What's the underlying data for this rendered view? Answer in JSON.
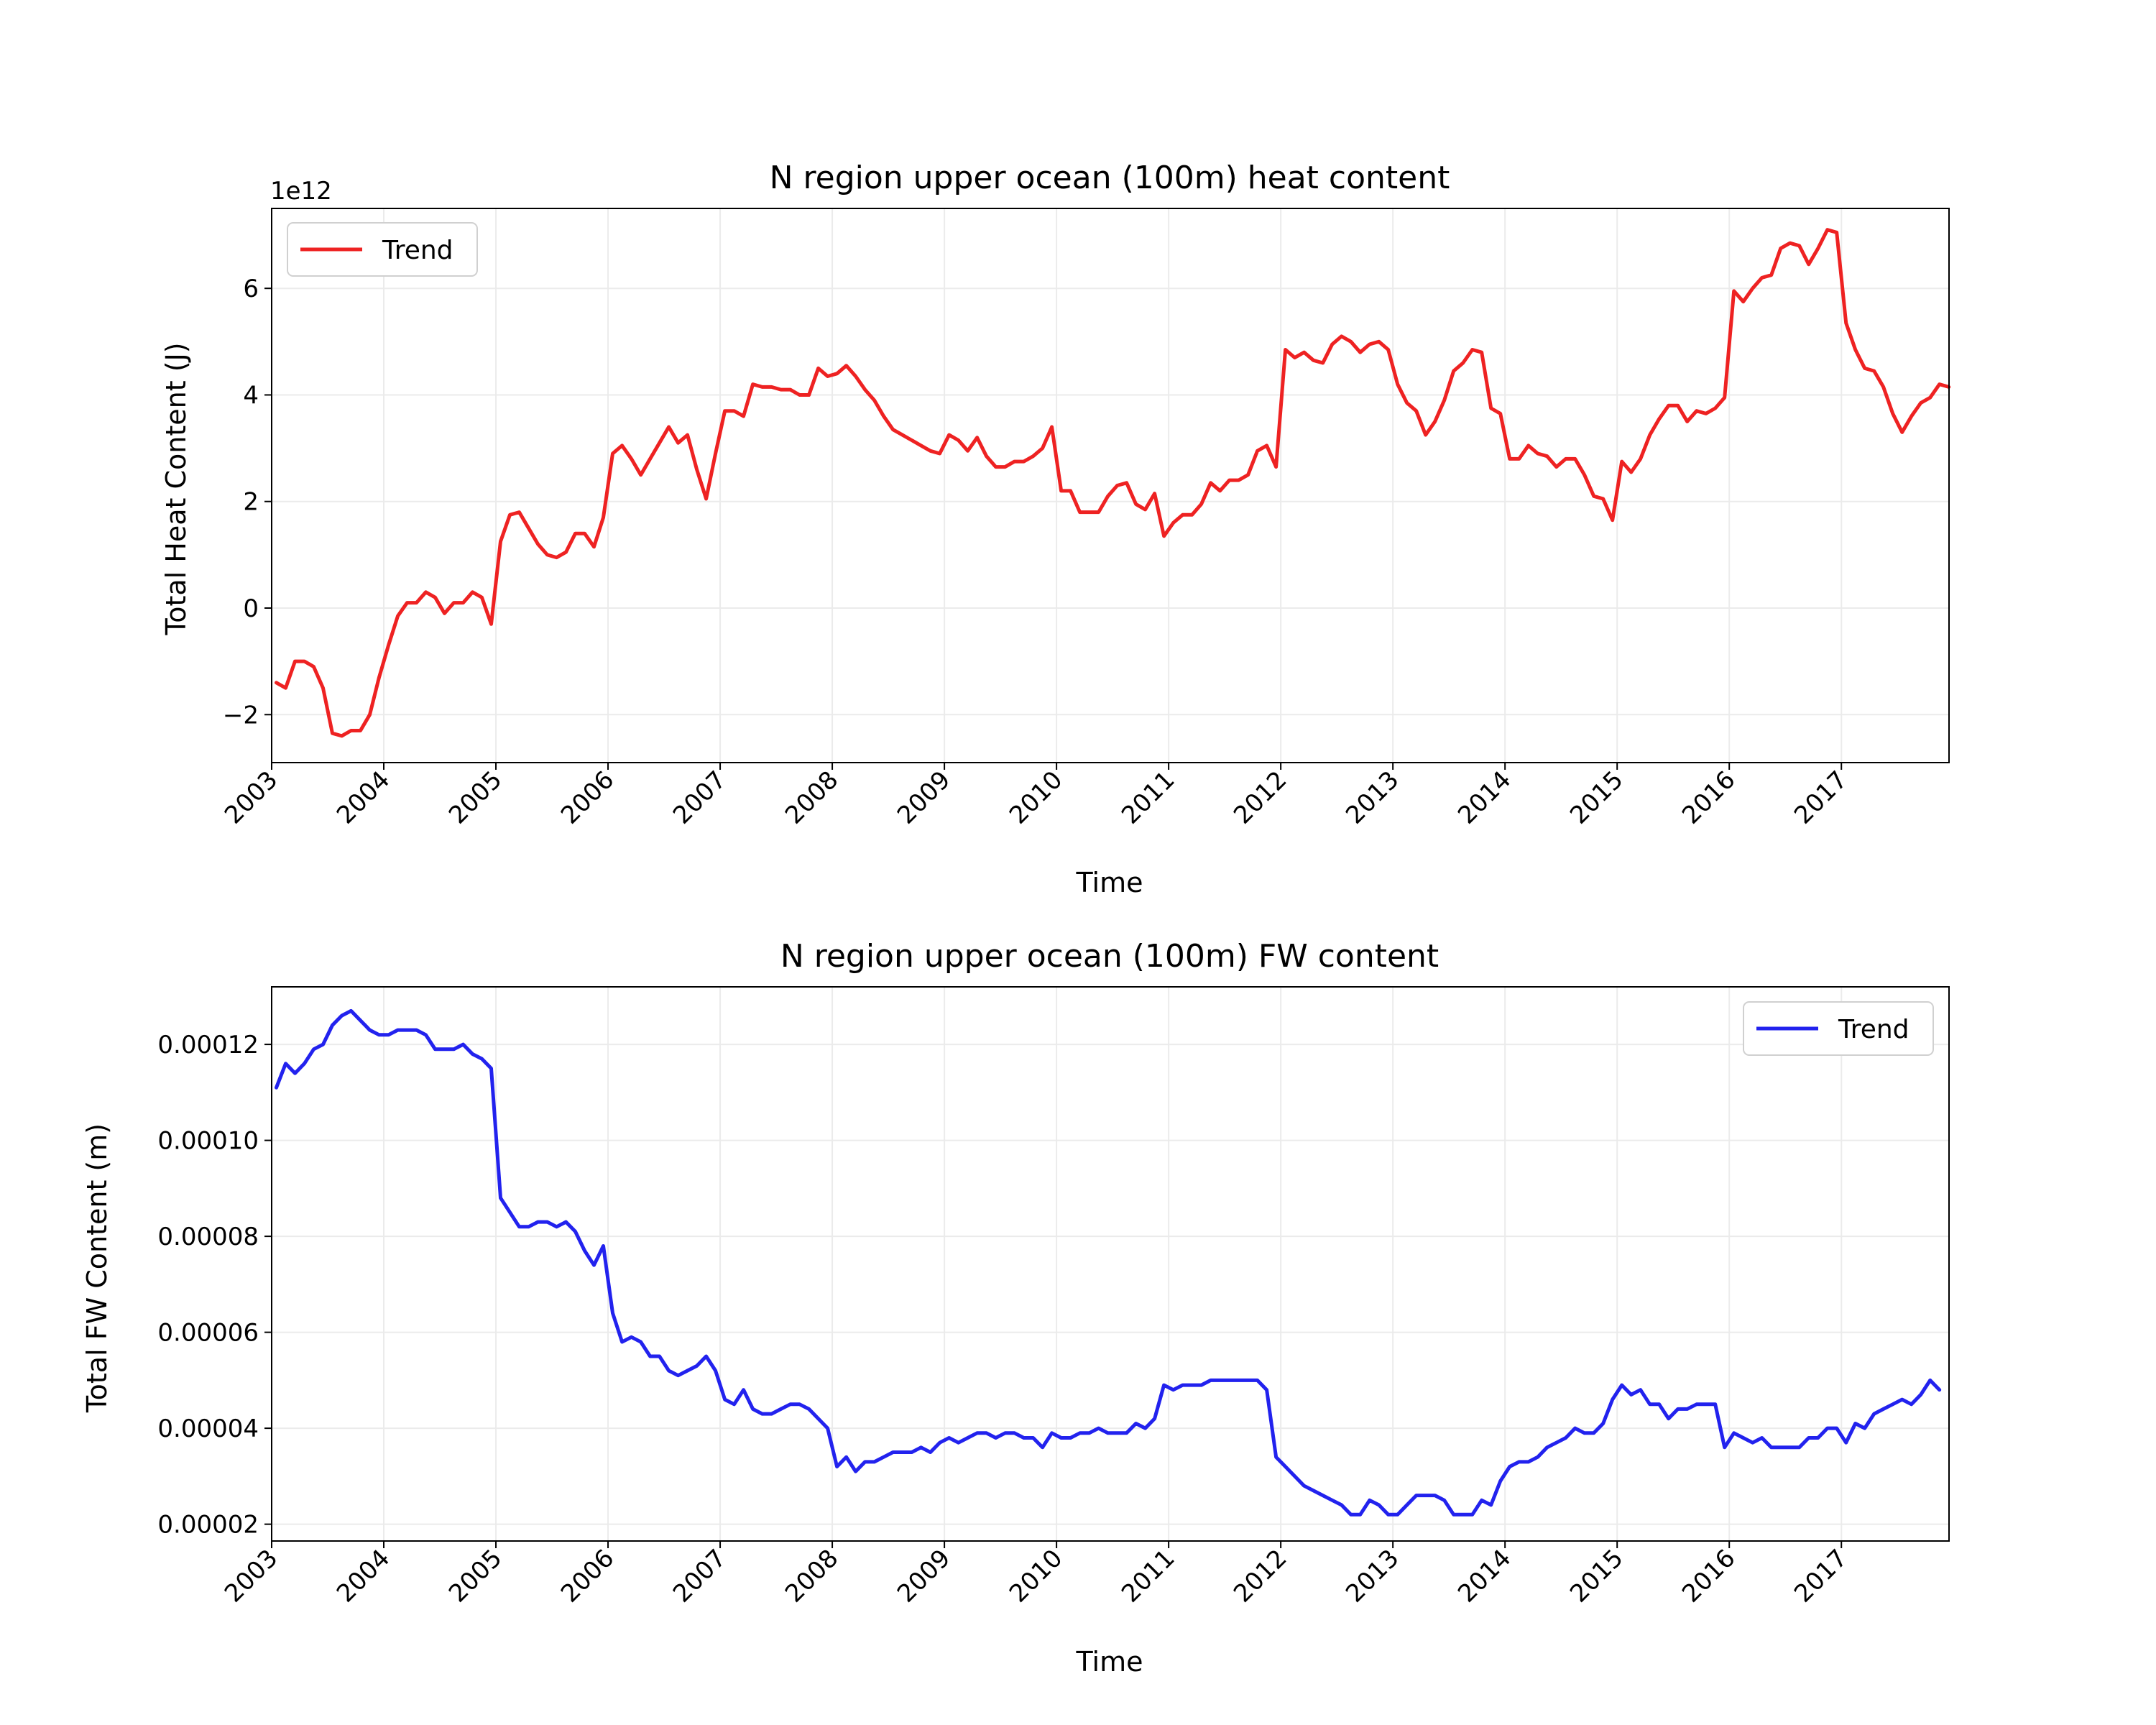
{
  "chart_data": [
    {
      "type": "line",
      "title": "N region upper ocean (100m) heat content",
      "xlabel": "Time",
      "ylabel": "Total Heat Content (J)",
      "y_offset_label": "1e12",
      "y_multiplier": 1000000000000.0,
      "xlim": [
        2003.0,
        2017.96
      ],
      "ylim": [
        -2.9,
        7.5
      ],
      "x_ticks": [
        "2003",
        "2004",
        "2005",
        "2006",
        "2007",
        "2008",
        "2009",
        "2010",
        "2011",
        "2012",
        "2013",
        "2014",
        "2015",
        "2016",
        "2017"
      ],
      "y_ticks": [
        -2,
        0,
        2,
        4,
        6
      ],
      "y_tick_labels": [
        "−2",
        "0",
        "2",
        "4",
        "6"
      ],
      "grid": true,
      "legend_position": "upper left",
      "series": [
        {
          "name": "Trend",
          "color": "#ee2222",
          "start_year": 2003,
          "step": "monthly",
          "values": [
            -1.4,
            -1.5,
            -1.0,
            -1.0,
            -1.1,
            -1.5,
            -2.35,
            -2.4,
            -2.3,
            -2.3,
            -2.0,
            -1.3,
            -0.7,
            -0.15,
            0.1,
            0.1,
            0.3,
            0.2,
            -0.1,
            0.1,
            0.1,
            0.3,
            0.2,
            -0.3,
            1.25,
            1.75,
            1.8,
            1.5,
            1.2,
            1.0,
            0.95,
            1.05,
            1.4,
            1.4,
            1.15,
            1.7,
            2.9,
            3.05,
            2.8,
            2.5,
            2.8,
            3.1,
            3.4,
            3.1,
            3.25,
            2.6,
            2.05,
            2.9,
            3.7,
            3.7,
            3.6,
            4.2,
            4.15,
            4.15,
            4.1,
            4.1,
            4.0,
            4.0,
            4.5,
            4.35,
            4.4,
            4.55,
            4.35,
            4.1,
            3.9,
            3.6,
            3.35,
            3.25,
            3.15,
            3.05,
            2.95,
            2.9,
            3.25,
            3.15,
            2.95,
            3.2,
            2.85,
            2.65,
            2.65,
            2.75,
            2.75,
            2.85,
            3.0,
            3.4,
            2.2,
            2.2,
            1.8,
            1.8,
            1.8,
            2.1,
            2.3,
            2.35,
            1.95,
            1.85,
            2.15,
            1.35,
            1.6,
            1.75,
            1.75,
            1.95,
            2.35,
            2.2,
            2.4,
            2.4,
            2.5,
            2.95,
            3.05,
            2.65,
            4.85,
            4.7,
            4.8,
            4.65,
            4.6,
            4.95,
            5.1,
            5.0,
            4.8,
            4.95,
            5.0,
            4.85,
            4.2,
            3.85,
            3.7,
            3.25,
            3.5,
            3.9,
            4.45,
            4.6,
            4.85,
            4.8,
            3.75,
            3.65,
            2.8,
            2.8,
            3.05,
            2.9,
            2.85,
            2.65,
            2.8,
            2.8,
            2.5,
            2.1,
            2.05,
            1.65,
            2.75,
            2.55,
            2.8,
            3.25,
            3.55,
            3.8,
            3.8,
            3.5,
            3.7,
            3.65,
            3.75,
            3.95,
            5.95,
            5.75,
            6.0,
            6.2,
            6.25,
            6.75,
            6.85,
            6.8,
            6.45,
            6.75,
            7.1,
            7.05,
            5.35,
            4.85,
            4.5,
            4.45,
            4.15,
            3.65,
            3.3,
            3.6,
            3.85,
            3.95,
            4.2,
            4.15
          ]
        }
      ]
    },
    {
      "type": "line",
      "title": "N region upper ocean (100m) FW content",
      "xlabel": "Time",
      "ylabel": "Total FW Content (m)",
      "xlim": [
        2003.0,
        2017.96
      ],
      "ylim": [
        1.65e-05,
        0.000132
      ],
      "x_ticks": [
        "2003",
        "2004",
        "2005",
        "2006",
        "2007",
        "2008",
        "2009",
        "2010",
        "2011",
        "2012",
        "2013",
        "2014",
        "2015",
        "2016",
        "2017"
      ],
      "y_ticks": [
        2e-05,
        4e-05,
        6e-05,
        8e-05,
        0.0001,
        0.00012
      ],
      "y_tick_labels": [
        "0.00002",
        "0.00004",
        "0.00006",
        "0.00008",
        "0.00010",
        "0.00012"
      ],
      "grid": true,
      "legend_position": "upper right",
      "series": [
        {
          "name": "Trend",
          "color": "#2222ee",
          "start_year": 2003,
          "step": "monthly",
          "values": [
            0.000111,
            0.000116,
            0.000114,
            0.000116,
            0.000119,
            0.00012,
            0.000124,
            0.000126,
            0.000127,
            0.000125,
            0.000123,
            0.000122,
            0.000122,
            0.000123,
            0.000123,
            0.000123,
            0.000122,
            0.000119,
            0.000119,
            0.000119,
            0.00012,
            0.000118,
            0.000117,
            0.000115,
            8.8e-05,
            8.5e-05,
            8.2e-05,
            8.2e-05,
            8.3e-05,
            8.3e-05,
            8.2e-05,
            8.3e-05,
            8.1e-05,
            7.7e-05,
            7.4e-05,
            7.8e-05,
            6.4e-05,
            5.8e-05,
            5.9e-05,
            5.8e-05,
            5.5e-05,
            5.5e-05,
            5.2e-05,
            5.1e-05,
            5.2e-05,
            5.3e-05,
            5.5e-05,
            5.2e-05,
            4.6e-05,
            4.5e-05,
            4.8e-05,
            4.4e-05,
            4.3e-05,
            4.3e-05,
            4.4e-05,
            4.5e-05,
            4.5e-05,
            4.4e-05,
            4.2e-05,
            4e-05,
            3.2e-05,
            3.4e-05,
            3.1e-05,
            3.3e-05,
            3.3e-05,
            3.4e-05,
            3.5e-05,
            3.5e-05,
            3.5e-05,
            3.6e-05,
            3.5e-05,
            3.7e-05,
            3.8e-05,
            3.7e-05,
            3.8e-05,
            3.9e-05,
            3.9e-05,
            3.8e-05,
            3.9e-05,
            3.9e-05,
            3.8e-05,
            3.8e-05,
            3.6e-05,
            3.9e-05,
            3.8e-05,
            3.8e-05,
            3.9e-05,
            3.9e-05,
            4e-05,
            3.9e-05,
            3.9e-05,
            3.9e-05,
            4.1e-05,
            4e-05,
            4.2e-05,
            4.9e-05,
            4.8e-05,
            4.9e-05,
            4.9e-05,
            4.9e-05,
            5e-05,
            5e-05,
            5e-05,
            5e-05,
            5e-05,
            5e-05,
            4.8e-05,
            3.4e-05,
            3.2e-05,
            3e-05,
            2.8e-05,
            2.7e-05,
            2.6e-05,
            2.5e-05,
            2.4e-05,
            2.2e-05,
            2.2e-05,
            2.5e-05,
            2.4e-05,
            2.2e-05,
            2.2e-05,
            2.4e-05,
            2.6e-05,
            2.6e-05,
            2.6e-05,
            2.5e-05,
            2.2e-05,
            2.2e-05,
            2.2e-05,
            2.5e-05,
            2.4e-05,
            2.9e-05,
            3.2e-05,
            3.3e-05,
            3.3e-05,
            3.4e-05,
            3.6e-05,
            3.7e-05,
            3.8e-05,
            4e-05,
            3.9e-05,
            3.9e-05,
            4.1e-05,
            4.6e-05,
            4.9e-05,
            4.7e-05,
            4.8e-05,
            4.5e-05,
            4.5e-05,
            4.2e-05,
            4.4e-05,
            4.4e-05,
            4.5e-05,
            4.5e-05,
            4.5e-05,
            3.6e-05,
            3.9e-05,
            3.8e-05,
            3.7e-05,
            3.8e-05,
            3.6e-05,
            3.6e-05,
            3.6e-05,
            3.6e-05,
            3.8e-05,
            3.8e-05,
            4e-05,
            4e-05,
            3.7e-05,
            4.1e-05,
            4e-05,
            4.3e-05,
            4.4e-05,
            4.5e-05,
            4.6e-05,
            4.5e-05,
            4.7e-05,
            5e-05,
            4.8e-05
          ]
        }
      ]
    }
  ]
}
